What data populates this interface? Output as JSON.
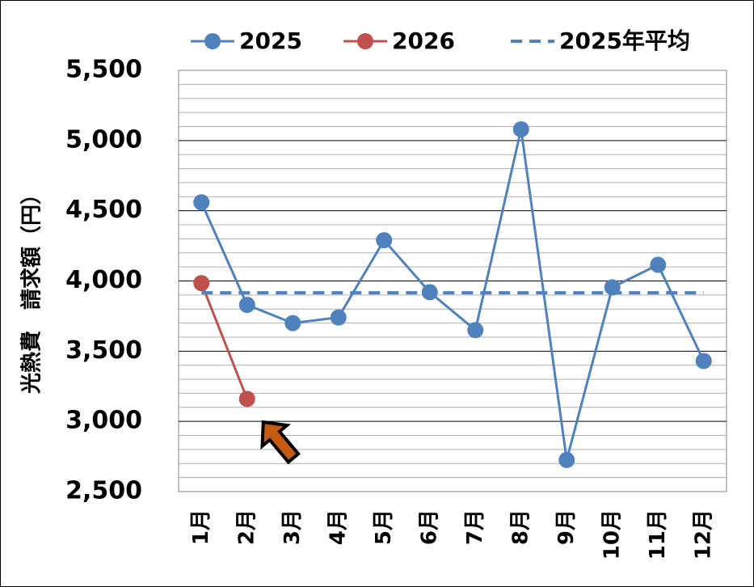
{
  "chart_data": {
    "type": "line",
    "ylabel": "光熱費　請求額（円）",
    "categories": [
      "1月",
      "2月",
      "3月",
      "4月",
      "5月",
      "6月",
      "7月",
      "8月",
      "9月",
      "10月",
      "11月",
      "12月"
    ],
    "series": [
      {
        "name": "2025",
        "color": "#4f81bd",
        "values": [
          4560,
          3830,
          3700,
          3740,
          4290,
          3920,
          3650,
          5080,
          2725,
          3955,
          4115,
          3430
        ]
      },
      {
        "name": "2026",
        "color": "#c0504d",
        "values": [
          3985,
          3160,
          null,
          null,
          null,
          null,
          null,
          null,
          null,
          null,
          null,
          null
        ]
      },
      {
        "name": "2025年平均",
        "color": "#4f81bd",
        "dashed": true,
        "values": [
          3916,
          3916,
          3916,
          3916,
          3916,
          3916,
          3916,
          3916,
          3916,
          3916,
          3916,
          3916
        ]
      }
    ],
    "ylim": [
      2500,
      5500
    ],
    "yticks": [
      {
        "value": 2500,
        "label": "2,500"
      },
      {
        "value": 3000,
        "label": "3,000"
      },
      {
        "value": 3500,
        "label": "3,500"
      },
      {
        "value": 4000,
        "label": "4,000"
      },
      {
        "value": 4500,
        "label": "4,500"
      },
      {
        "value": 5000,
        "label": "5,000"
      },
      {
        "value": 5500,
        "label": "5,500"
      }
    ],
    "grid": true,
    "minor_grid": 5,
    "legend": "top"
  }
}
